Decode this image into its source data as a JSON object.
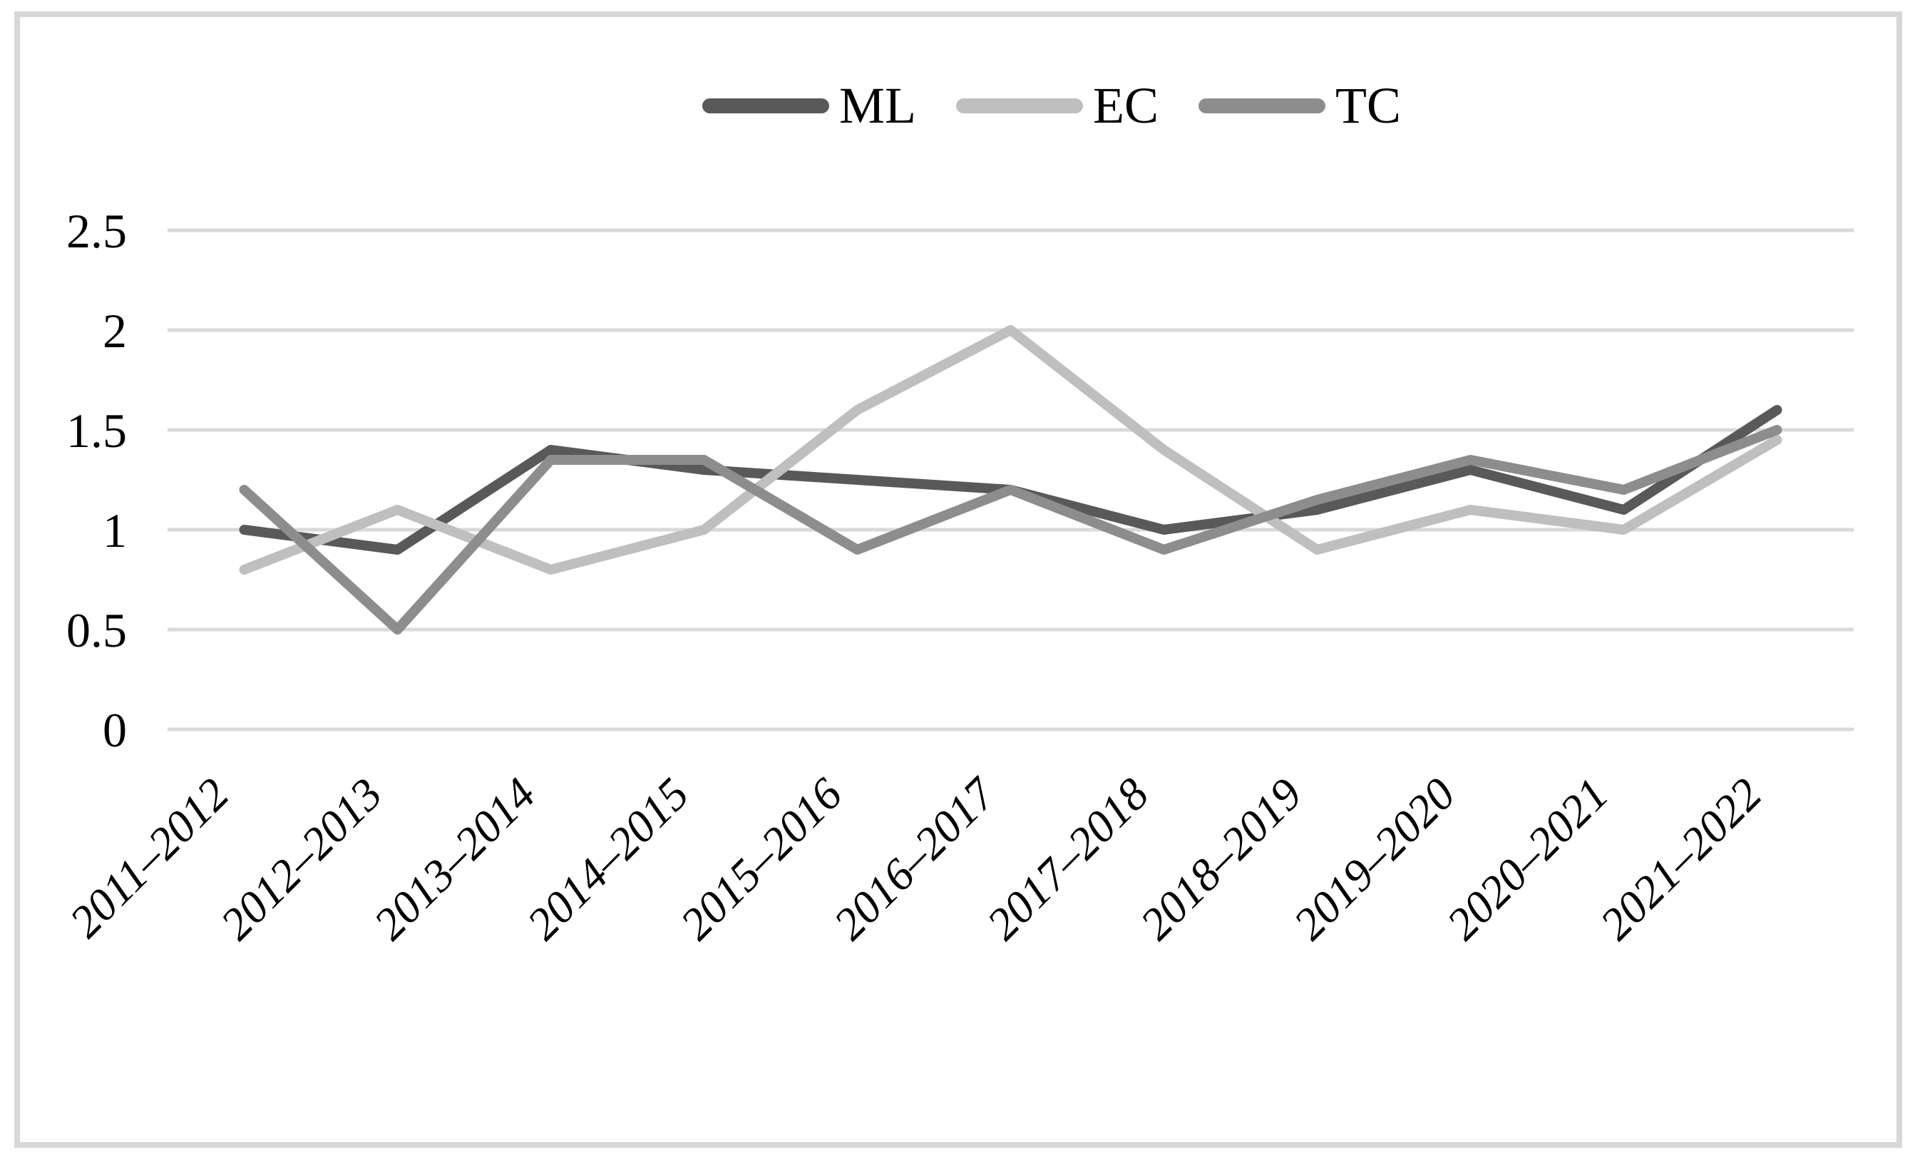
{
  "figure": {
    "background_color": "#ffffff",
    "border_color": "#d7d7d7"
  },
  "chart_data": {
    "type": "line",
    "title": "",
    "xlabel": "",
    "ylabel": "",
    "categories": [
      "2011–2012",
      "2012–2013",
      "2013–2014",
      "2014–2015",
      "2015–2016",
      "2016–2017",
      "2017–2018",
      "2018–2019",
      "2019–2020",
      "2020–2021",
      "2021–2022"
    ],
    "series": [
      {
        "name": "ML",
        "color": "#595959",
        "values": [
          1.0,
          0.9,
          1.4,
          1.3,
          1.25,
          1.2,
          1.0,
          1.1,
          1.3,
          1.1,
          1.6
        ]
      },
      {
        "name": "EC",
        "color": "#bfbfbf",
        "values": [
          0.8,
          1.1,
          0.8,
          1.0,
          1.6,
          2.0,
          1.4,
          0.9,
          1.1,
          1.0,
          1.45
        ]
      },
      {
        "name": "TC",
        "color": "#8d8d8d",
        "values": [
          1.2,
          0.5,
          1.35,
          1.35,
          0.9,
          1.2,
          0.9,
          1.15,
          1.35,
          1.2,
          1.5
        ]
      }
    ],
    "ylim": [
      0,
      2.5
    ],
    "ytick_step": 0.5,
    "ytick_labels": [
      "0",
      "0.5",
      "1",
      "1.5",
      "2",
      "2.5"
    ],
    "x_label_rotation": -45,
    "grid": "horizontal",
    "gridline_color": "#d9d9d9",
    "legend_position": "top"
  }
}
